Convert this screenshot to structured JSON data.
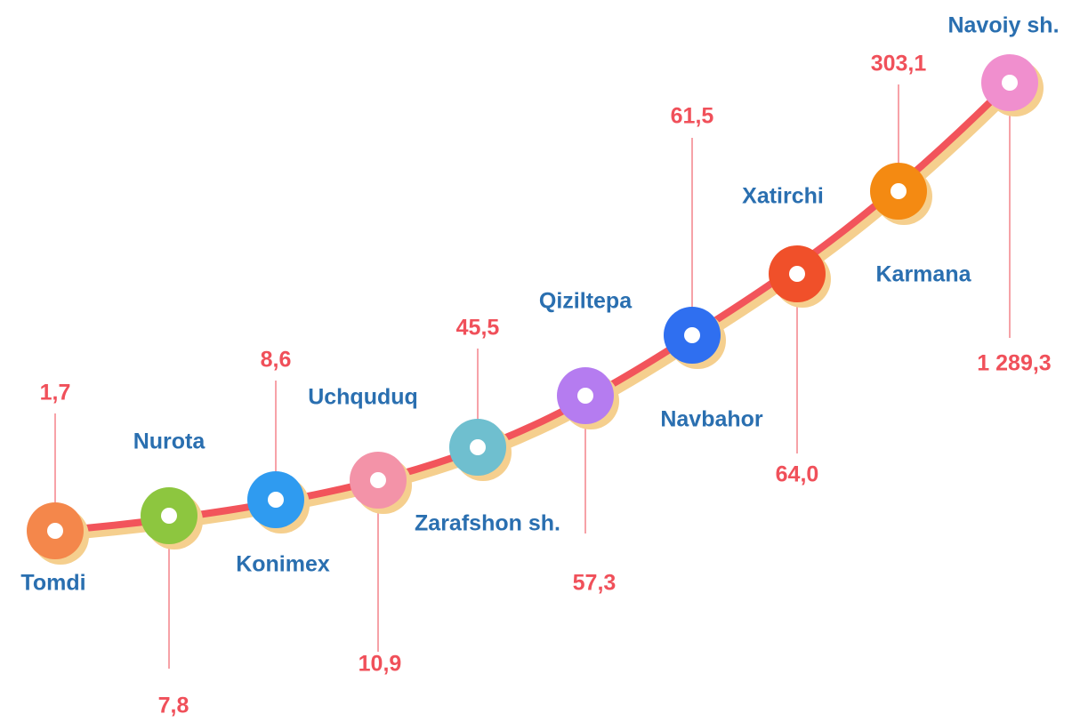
{
  "chart_data": {
    "type": "infographic-curve",
    "categories": [
      "Tomdi",
      "Nurota",
      "Konimex",
      "Uchquduq",
      "Zarafshon sh.",
      "Navbahor",
      "Qiziltepa",
      "Karmana",
      "Xatirchi",
      "Navoiy sh."
    ],
    "values": [
      1.7,
      7.8,
      8.6,
      10.9,
      45.5,
      57.3,
      61.5,
      64.0,
      303.1,
      1289.3
    ],
    "value_labels": [
      "1,7",
      "7,8",
      "8,6",
      "10,9",
      "45,5",
      "57,3",
      "61,5",
      "64,0",
      "303,1",
      "1 289,3"
    ],
    "colors": [
      "#f4874b",
      "#8dc63f",
      "#2f9bf0",
      "#f393a8",
      "#6fbfcf",
      "#b57cf0",
      "#2f6ff0",
      "#f0502a",
      "#f48a12",
      "#f08fce"
    ],
    "label_color": "#f0505a",
    "name_color": "#2a6fb0"
  }
}
